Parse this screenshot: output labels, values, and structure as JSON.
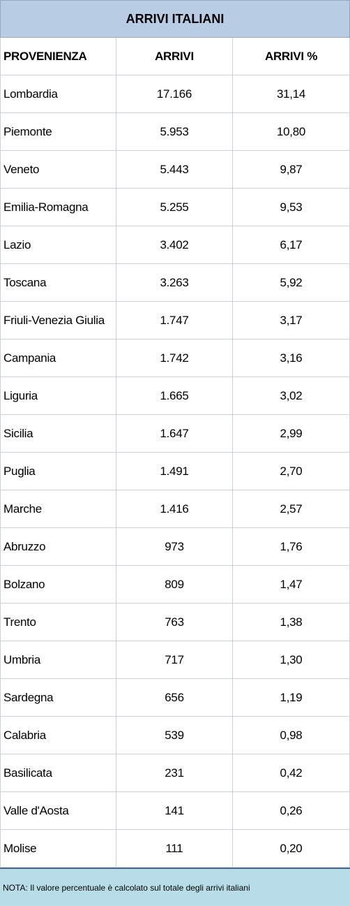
{
  "title": "ARRIVI ITALIANI",
  "table": {
    "header": [
      "PROVENIENZA",
      "ARRIVI",
      "ARRIVI %"
    ],
    "rows": [
      [
        "Lombardia",
        "17.166",
        "31,14"
      ],
      [
        "Piemonte",
        "5.953",
        "10,80"
      ],
      [
        "Veneto",
        "5.443",
        "9,87"
      ],
      [
        "Emilia-Romagna",
        "5.255",
        "9,53"
      ],
      [
        "Lazio",
        "3.402",
        "6,17"
      ],
      [
        "Toscana",
        "3.263",
        "5,92"
      ],
      [
        "Friuli-Venezia Giulia",
        "1.747",
        "3,17"
      ],
      [
        "Campania",
        "1.742",
        "3,16"
      ],
      [
        "Liguria",
        "1.665",
        "3,02"
      ],
      [
        "Sicilia",
        "1.647",
        "2,99"
      ],
      [
        "Puglia",
        "1.491",
        "2,70"
      ],
      [
        "Marche",
        "1.416",
        "2,57"
      ],
      [
        "Abruzzo",
        "973",
        "1,76"
      ],
      [
        "Bolzano",
        "809",
        "1,47"
      ],
      [
        "Trento",
        "763",
        "1,38"
      ],
      [
        "Umbria",
        "717",
        "1,30"
      ],
      [
        "Sardegna",
        "656",
        "1,19"
      ],
      [
        "Calabria",
        "539",
        "0,98"
      ],
      [
        "Basilicata",
        "231",
        "0,42"
      ],
      [
        "Valle d'Aosta",
        "141",
        "0,26"
      ],
      [
        "Molise",
        "111",
        "0,20"
      ]
    ]
  },
  "note": "NOTA: Il valore percentuale è calcolato sul totale degli arrivi italiani"
}
